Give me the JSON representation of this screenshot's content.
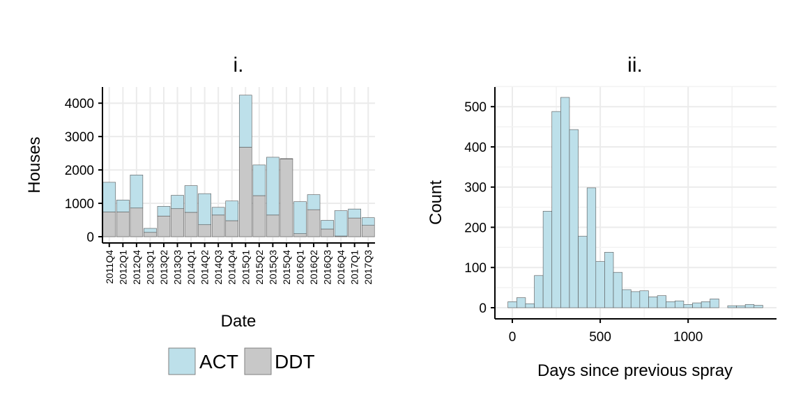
{
  "chart_data": [
    {
      "type": "bar",
      "title": "i.",
      "xlabel": "Date",
      "ylabel": "Houses",
      "ylim": [
        0,
        4500
      ],
      "yticks": [
        0,
        1000,
        2000,
        3000,
        4000
      ],
      "grid": true,
      "stacked": true,
      "categories": [
        "2011Q4",
        "2012Q1",
        "2012Q4",
        "2013Q1",
        "2013Q2",
        "2013Q3",
        "2014Q1",
        "2014Q2",
        "2014Q3",
        "2014Q4",
        "2015Q1",
        "2015Q2",
        "2015Q3",
        "2015Q4",
        "2016Q1",
        "2016Q2",
        "2016Q3",
        "2016Q4",
        "2017Q1",
        "2017Q3"
      ],
      "series": [
        {
          "name": "DDT",
          "color": "#c8c8c8",
          "values": [
            740,
            740,
            860,
            130,
            620,
            840,
            730,
            360,
            650,
            480,
            2680,
            1230,
            650,
            2330,
            90,
            810,
            230,
            20,
            560,
            340
          ]
        },
        {
          "name": "ACT",
          "color": "#bde0ea",
          "values": [
            890,
            360,
            990,
            120,
            290,
            400,
            800,
            930,
            230,
            590,
            1560,
            920,
            1730,
            10,
            960,
            450,
            260,
            760,
            270,
            230
          ]
        }
      ],
      "legend": {
        "position": "bottom",
        "entries": [
          "ACT",
          "DDT"
        ]
      }
    },
    {
      "type": "bar",
      "subtype": "histogram",
      "title": "ii.",
      "xlabel": "Days since previous spray",
      "ylabel": "Count",
      "xlim": [
        -50,
        1400
      ],
      "ylim": [
        0,
        550
      ],
      "xticks": [
        0,
        500,
        1000
      ],
      "yticks": [
        0,
        100,
        200,
        300,
        400,
        500
      ],
      "grid": true,
      "color": "#bde0ea",
      "bin_width": 50,
      "bin_centers": [
        0,
        50,
        100,
        150,
        200,
        250,
        300,
        350,
        400,
        450,
        500,
        550,
        600,
        650,
        700,
        750,
        800,
        850,
        900,
        950,
        1000,
        1050,
        1100,
        1150,
        1200,
        1250,
        1300,
        1350,
        1400
      ],
      "values": [
        15,
        25,
        10,
        80,
        240,
        488,
        523,
        443,
        178,
        298,
        115,
        138,
        88,
        45,
        40,
        42,
        27,
        30,
        15,
        17,
        8,
        12,
        15,
        22,
        0,
        5,
        5,
        8,
        6
      ]
    }
  ]
}
